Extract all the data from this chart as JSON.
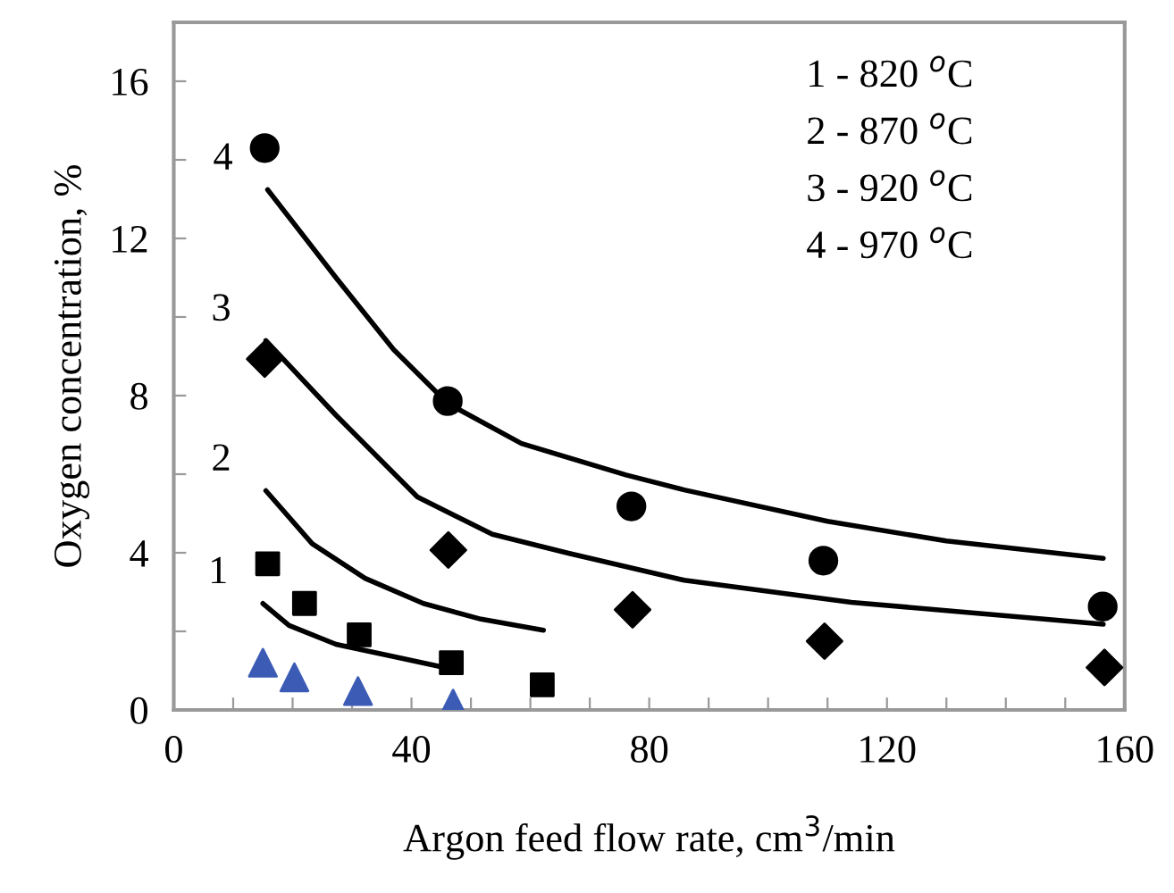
{
  "chart_data": {
    "type": "scatter",
    "xlabel": "Argon feed flow rate, cm$^{3}$/min",
    "ylabel": "Oxygen concentration, %",
    "xlim": [
      0,
      160
    ],
    "ylim": [
      0,
      17.5
    ],
    "xticks": [
      0,
      {
        "value": 10,
        "label": null
      },
      {
        "value": 20,
        "label": null
      },
      {
        "value": 30,
        "label": null
      },
      40,
      {
        "value": 50,
        "label": null
      },
      {
        "value": 60,
        "label": null
      },
      {
        "value": 70,
        "label": null
      },
      80,
      {
        "value": 90,
        "label": null
      },
      {
        "value": 100,
        "label": null
      },
      {
        "value": 110,
        "label": null
      },
      120,
      {
        "value": 130,
        "label": null
      },
      {
        "value": 140,
        "label": null
      },
      {
        "value": 150,
        "label": null
      },
      160
    ],
    "yticks": [
      0,
      {
        "value": 2,
        "label": null
      },
      4,
      {
        "value": 6,
        "label": null
      },
      8,
      {
        "value": 10,
        "label": null
      },
      12,
      {
        "value": 14,
        "label": null
      },
      16
    ],
    "grid": false,
    "legend": false,
    "series": [
      {
        "marker": "circle",
        "color": "#000000",
        "x": [
          15.3,
          46.1,
          77,
          109.3,
          156.3
        ],
        "values": [
          14.3,
          7.86,
          5.18,
          3.8,
          2.63
        ]
      },
      {
        "marker": "diamond",
        "color": "#000000",
        "x": [
          15.3,
          46.2,
          77.2,
          109.5,
          156.6
        ],
        "values": [
          8.93,
          4.07,
          2.55,
          1.75,
          1.08
        ]
      },
      {
        "marker": "square",
        "color": "#000000",
        "x": [
          15.8,
          22,
          31.2,
          46.7,
          62
        ],
        "values": [
          3.72,
          2.71,
          1.91,
          1.2,
          0.64
        ]
      },
      {
        "marker": "triangle",
        "color": "#3b5bb5",
        "x": [
          15,
          20.3,
          31,
          47
        ],
        "values": [
          1.2,
          0.83,
          0.48,
          0.16
        ]
      },
      {
        "type": "line",
        "marker": "none",
        "color": "#000000",
        "x": [
          15.8,
          27.3,
          37,
          46.1,
          58.5,
          76.1,
          85.9,
          110,
          130,
          156.4
        ],
        "values": [
          13.24,
          11,
          9.17,
          7.8,
          6.78,
          5.98,
          5.6,
          4.8,
          4.3,
          3.86
        ]
      },
      {
        "type": "line",
        "marker": "none",
        "color": "#000000",
        "x": [
          15.5,
          27.3,
          41,
          53.6,
          66.4,
          85.9,
          114,
          156.4
        ],
        "values": [
          9.4,
          7.5,
          5.42,
          4.47,
          3.99,
          3.3,
          2.74,
          2.18
        ]
      },
      {
        "type": "line",
        "marker": "none",
        "color": "#000000",
        "x": [
          15.5,
          23.3,
          32.2,
          42,
          51.7,
          62.2
        ],
        "values": [
          5.58,
          4.23,
          3.35,
          2.71,
          2.31,
          2.03
        ]
      },
      {
        "type": "line",
        "marker": "none",
        "color": "#000000",
        "x": [
          15,
          19.4,
          27.3,
          37,
          45.9
        ],
        "values": [
          2.71,
          2.15,
          1.67,
          1.36,
          1.07
        ]
      }
    ],
    "annotations": [
      {
        "text": "4",
        "x": 15.8,
        "y": 13.24
      },
      {
        "text": "3",
        "x": 15.5,
        "y": 9.4
      },
      {
        "text": "2",
        "x": 15.5,
        "y": 5.58
      },
      {
        "text": "1",
        "x": 15,
        "y": 2.71
      },
      "1 - 820 $^{o}$C",
      "2 - 870 $^{o}$C",
      "3 - 920 $^{o}$C",
      "4 - 970 $^{o}$C"
    ]
  }
}
